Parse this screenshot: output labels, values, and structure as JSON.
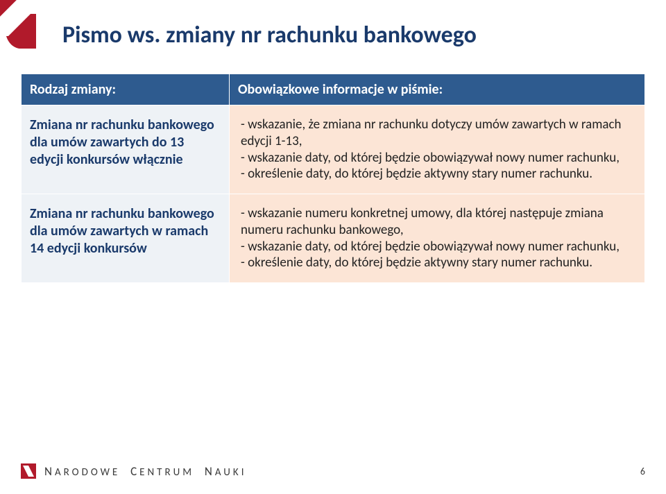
{
  "title": "Pismo ws. zmiany nr rachunku bankowego",
  "table": {
    "header": {
      "col1": "Rodzaj zmiany:",
      "col2": "Obowiązkowe informacje w piśmie:"
    },
    "rows": [
      {
        "left": "Zmiana nr rachunku bankowego dla umów zawartych do 13 edycji  konkursów włącznie",
        "right": "- wskazanie, że zmiana nr rachunku dotyczy umów zawartych w ramach edycji 1-13,\n- wskazanie daty, od której będzie obowiązywał nowy numer rachunku,\n- określenie daty, do której będzie aktywny stary numer rachunku."
      },
      {
        "left": "Zmiana nr rachunku bankowego dla umów zawartych w ramach 14 edycji konkursów",
        "right": "- wskazanie numeru konkretnej umowy, dla której następuje zmiana numeru rachunku bankowego,\n- wskazanie daty, od której będzie obowiązywał nowy numer rachunku,\n- określenie daty, do której będzie aktywny stary numer rachunku."
      }
    ]
  },
  "footer": {
    "brand_parts": [
      "N",
      "ARODOWE",
      "C",
      "ENTRUM",
      "N",
      "AUKI"
    ],
    "page": "6"
  },
  "colors": {
    "header_bg": "#2e5b8f",
    "header_text": "#ffffff",
    "left_bg": "#eef2f6",
    "left_text": "#1a3a6b",
    "right_bg": "#fce5d6",
    "title_color": "#1a3a6b",
    "logo_red": "#b11a2b"
  }
}
